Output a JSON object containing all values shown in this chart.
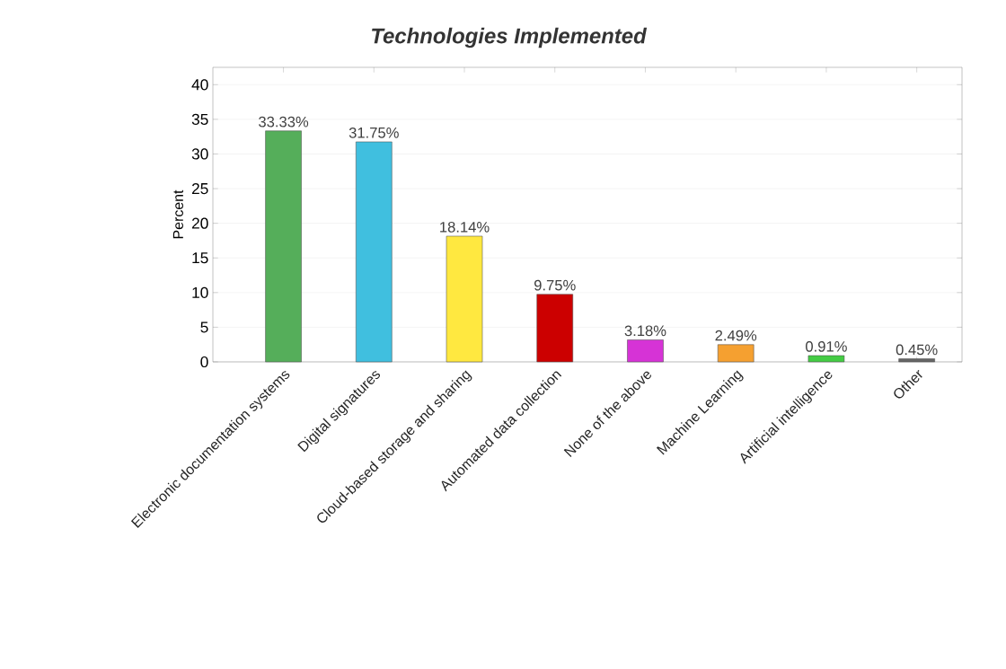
{
  "chart_data": {
    "type": "bar",
    "title": "Technologies Implemented",
    "ylabel": "Percent",
    "categories": [
      "Electronic documentation systems",
      "Digital signatures",
      "Cloud-based storage and sharing",
      "Automated data collection",
      "None of the above",
      "Machine Learning",
      "Artificial intelligence",
      "Other"
    ],
    "values": [
      33.33,
      31.75,
      18.14,
      9.75,
      3.18,
      2.49,
      0.91,
      0.45
    ],
    "value_labels": [
      "33.33%",
      "31.75%",
      "18.14%",
      "9.75%",
      "3.18%",
      "2.49%",
      "0.91%",
      "0.45%"
    ],
    "colors": [
      "#55ae5a",
      "#40bfdf",
      "#ffe840",
      "#cc0000",
      "#d633d6",
      "#f5a030",
      "#44cc44",
      "#666666"
    ],
    "ylim": [
      0,
      42.5
    ],
    "yticks": [
      0,
      5,
      10,
      15,
      20,
      25,
      30,
      35,
      40
    ],
    "grid": "y"
  }
}
